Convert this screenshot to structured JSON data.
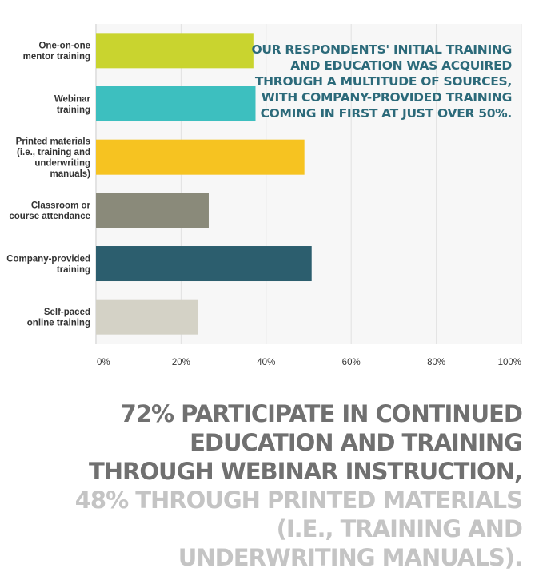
{
  "chart_data": {
    "type": "bar",
    "orientation": "horizontal",
    "categories": [
      "One-on-one\nmentor training",
      "Webinar\ntraining",
      "Printed materials\n(i.e., training and\nunderwriting\nmanuals)",
      "Classroom or\ncourse attendance",
      "Company-provided\ntraining",
      "Self-paced\nonline training"
    ],
    "values": [
      37,
      37.5,
      49,
      26.5,
      50.7,
      24
    ],
    "colors": [
      "#c9d42f",
      "#3dbfbf",
      "#f6c321",
      "#8a8a7a",
      "#2c5e6e",
      "#d4d2c6"
    ],
    "xlim": [
      0,
      100
    ],
    "ticks": [
      "0%",
      "20%",
      "40%",
      "60%",
      "80%",
      "100%"
    ],
    "grid": true,
    "annotation": [
      "OUR RESPONDENTS' INITIAL TRAINING",
      "AND EDUCATION WAS ACQUIRED",
      "THROUGH A MULTITUDE OF SOURCES,",
      "WITH COMPANY-PROVIDED TRAINING",
      "COMING IN FIRST AT JUST OVER 50%."
    ]
  },
  "footer": {
    "dark_text": "72% PARTICIPATE IN CONTINUED EDUCATION AND TRAINING THROUGH WEBINAR INSTRUCTION,",
    "light_text": "48% THROUGH PRINTED MATERIALS (I.E., TRAINING AND UNDERWRITING MANUALS)."
  }
}
